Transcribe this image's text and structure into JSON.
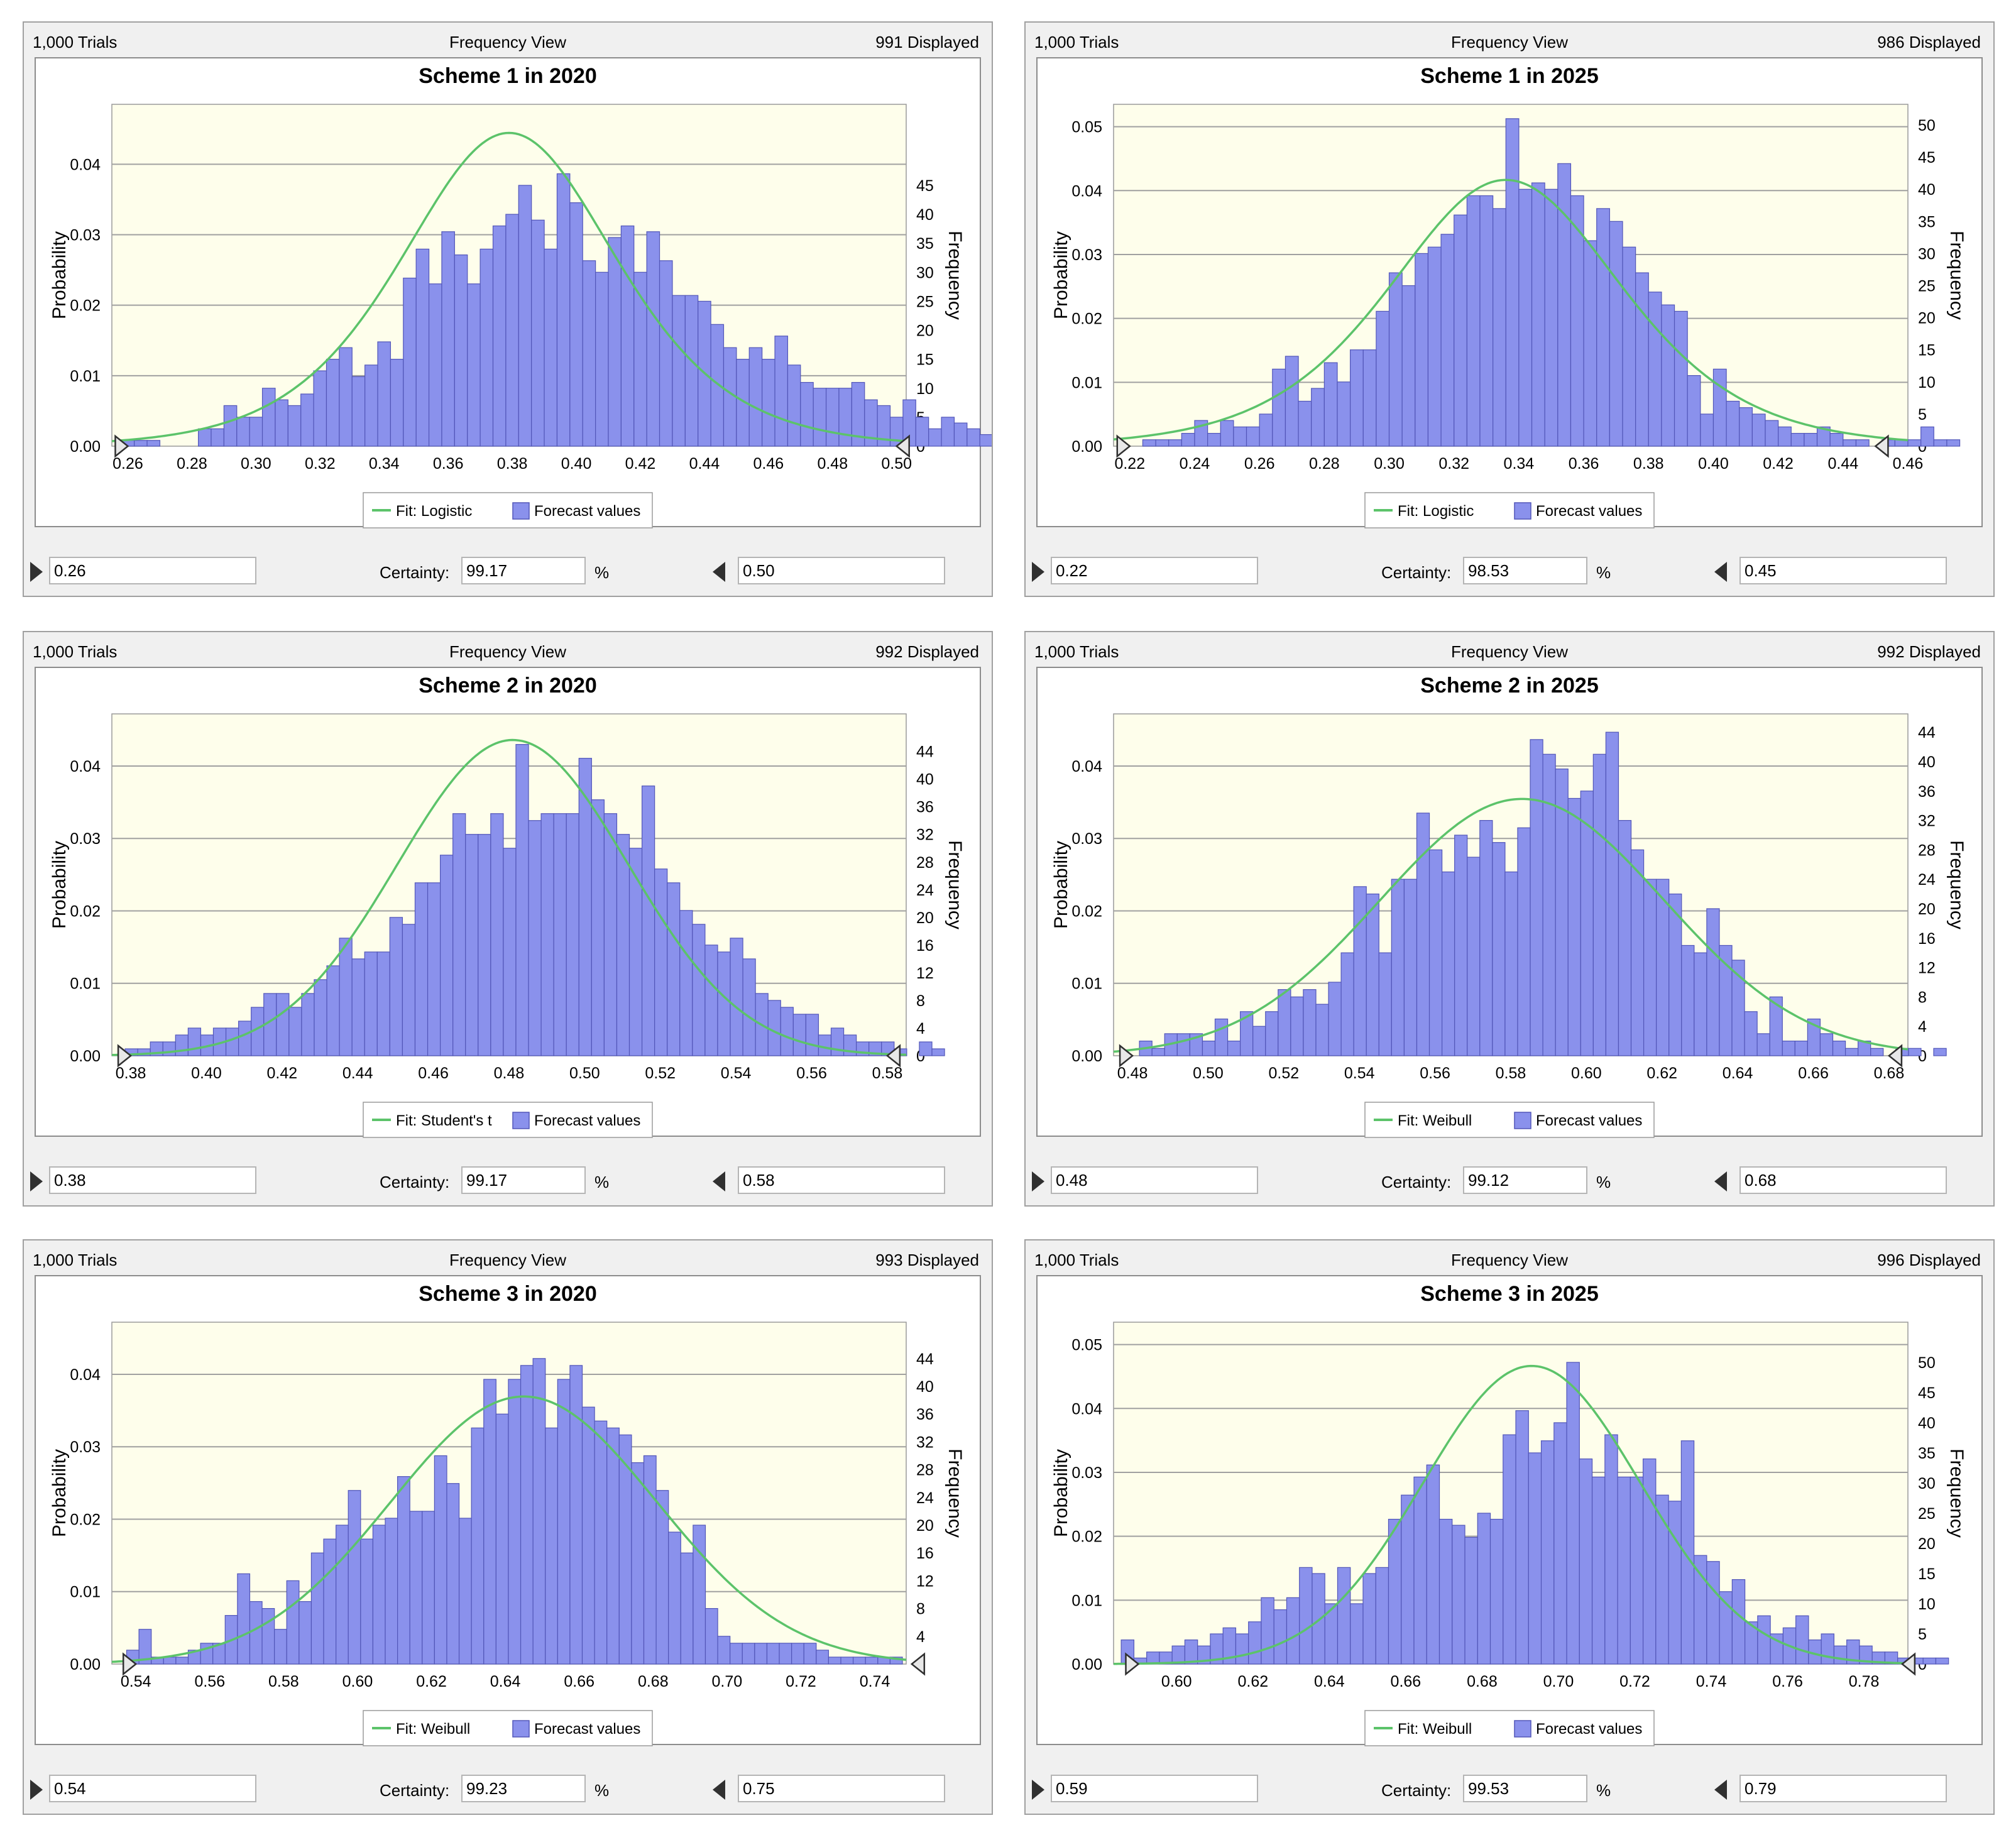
{
  "panels": [
    {
      "trials": "1,000 Trials",
      "view": "Frequency View",
      "displayed": "991 Displayed",
      "lower": "0.26",
      "certainty_label": "Certainty:",
      "certainty": "99.17",
      "pct": "%",
      "upper": "0.50",
      "chart_data": {
        "type": "bar",
        "title": "Scheme 1 in 2020",
        "ylabel": "Probability",
        "ylabel2": "Frequency",
        "x_ticks": [
          "0.26",
          "0.28",
          "0.30",
          "0.32",
          "0.34",
          "0.36",
          "0.38",
          "0.40",
          "0.42",
          "0.44",
          "0.46",
          "0.48",
          "0.50"
        ],
        "xlim": [
          0.255,
          0.503
        ],
        "y_ticks": [
          "0.00",
          "0.01",
          "0.02",
          "0.03",
          "0.04"
        ],
        "ylim": [
          0,
          0.0485
        ],
        "y2_ticks": [
          "0",
          "5",
          "10",
          "15",
          "20",
          "25",
          "30",
          "35",
          "40",
          "45"
        ],
        "bin_start": 0.258,
        "bin_width": 0.004,
        "frequencies": [
          1,
          1,
          1,
          0,
          0,
          0,
          3,
          3,
          7,
          5,
          5,
          10,
          8,
          7,
          9,
          13,
          15,
          17,
          12,
          14,
          18,
          15,
          29,
          34,
          28,
          37,
          33,
          28,
          34,
          38,
          40,
          45,
          39,
          34,
          47,
          42,
          32,
          30,
          36,
          38,
          30,
          37,
          32,
          26,
          26,
          25,
          21,
          17,
          15,
          17,
          15,
          19,
          14,
          11,
          10,
          10,
          10,
          11,
          8,
          7,
          5,
          8,
          5,
          3,
          5,
          4,
          3,
          2,
          3,
          5,
          2,
          2
        ],
        "legend": [
          "Fit: Logistic",
          "Forecast values"
        ],
        "fit": {
          "type": "logistic",
          "mean": 0.379,
          "scale": 0.0225
        }
      }
    },
    {
      "trials": "1,000 Trials",
      "view": "Frequency View",
      "displayed": "986 Displayed",
      "lower": "0.22",
      "certainty_label": "Certainty:",
      "certainty": "98.53",
      "pct": "%",
      "upper": "0.45",
      "chart_data": {
        "type": "bar",
        "title": "Scheme 1 in 2025",
        "ylabel": "Probability",
        "ylabel2": "Frequency",
        "x_ticks": [
          "0.22",
          "0.24",
          "0.26",
          "0.28",
          "0.30",
          "0.32",
          "0.34",
          "0.36",
          "0.38",
          "0.40",
          "0.42",
          "0.44",
          "0.46"
        ],
        "xlim": [
          0.215,
          0.46
        ],
        "y_ticks": [
          "0.00",
          "0.01",
          "0.02",
          "0.03",
          "0.04",
          "0.05"
        ],
        "ylim": [
          0,
          0.0535
        ],
        "y2_ticks": [
          "0",
          "5",
          "10",
          "15",
          "20",
          "25",
          "30",
          "35",
          "40",
          "45",
          "50"
        ],
        "bin_start": 0.22,
        "bin_width": 0.004,
        "frequencies": [
          0,
          1,
          1,
          1,
          2,
          4,
          2,
          4,
          3,
          3,
          5,
          12,
          14,
          7,
          9,
          13,
          10,
          15,
          15,
          21,
          27,
          25,
          30,
          31,
          33,
          36,
          39,
          39,
          37,
          51,
          40,
          41,
          40,
          44,
          39,
          32,
          37,
          35,
          31,
          27,
          24,
          22,
          21,
          11,
          5,
          12,
          7,
          6,
          5,
          4,
          3,
          2,
          2,
          3,
          2,
          1,
          1,
          0,
          1,
          1,
          1,
          3,
          1,
          1
        ],
        "legend": [
          "Fit: Logistic",
          "Forecast values"
        ],
        "fit": {
          "type": "logistic",
          "mean": 0.336,
          "scale": 0.024
        }
      }
    },
    {
      "trials": "1,000 Trials",
      "view": "Frequency View",
      "displayed": "992 Displayed",
      "lower": "0.38",
      "certainty_label": "Certainty:",
      "certainty": "99.17",
      "pct": "%",
      "upper": "0.58",
      "chart_data": {
        "type": "bar",
        "title": "Scheme 2 in 2020",
        "ylabel": "Probability",
        "ylabel2": "Frequency",
        "x_ticks": [
          "0.38",
          "0.40",
          "0.42",
          "0.44",
          "0.46",
          "0.48",
          "0.50",
          "0.52",
          "0.54",
          "0.56",
          "0.58"
        ],
        "xlim": [
          0.375,
          0.585
        ],
        "y_ticks": [
          "0.00",
          "0.01",
          "0.02",
          "0.03",
          "0.04"
        ],
        "ylim": [
          0,
          0.0472
        ],
        "y2_ticks": [
          "0",
          "4",
          "8",
          "12",
          "16",
          "20",
          "24",
          "28",
          "32",
          "36",
          "40",
          "44"
        ],
        "bin_start": 0.3785,
        "bin_width": 0.003333,
        "frequencies": [
          1,
          1,
          2,
          2,
          3,
          4,
          3,
          4,
          4,
          5,
          7,
          9,
          9,
          7,
          9,
          11,
          13,
          17,
          14,
          15,
          15,
          20,
          19,
          25,
          25,
          29,
          35,
          32,
          32,
          35,
          30,
          45,
          34,
          35,
          35,
          35,
          43,
          37,
          35,
          32,
          30,
          39,
          27,
          25,
          21,
          19,
          16,
          15,
          17,
          14,
          9,
          8,
          7,
          6,
          6,
          3,
          4,
          3,
          2,
          2,
          2,
          1,
          0,
          2,
          1
        ],
        "legend": [
          "Fit: Student's t",
          "Forecast values"
        ],
        "fit": {
          "type": "normal",
          "mean": 0.481,
          "sd": 0.0305
        }
      }
    },
    {
      "trials": "1,000 Trials",
      "view": "Frequency View",
      "displayed": "992 Displayed",
      "lower": "0.48",
      "certainty_label": "Certainty:",
      "certainty": "99.12",
      "pct": "%",
      "upper": "0.68",
      "chart_data": {
        "type": "bar",
        "title": "Scheme 2 in 2025",
        "ylabel": "Probability",
        "ylabel2": "Frequency",
        "x_ticks": [
          "0.48",
          "0.50",
          "0.52",
          "0.54",
          "0.56",
          "0.58",
          "0.60",
          "0.62",
          "0.64",
          "0.66",
          "0.68"
        ],
        "xlim": [
          0.475,
          0.685
        ],
        "y_ticks": [
          "0.00",
          "0.01",
          "0.02",
          "0.03",
          "0.04"
        ],
        "ylim": [
          0,
          0.0472
        ],
        "y2_ticks": [
          "0",
          "4",
          "8",
          "12",
          "16",
          "20",
          "24",
          "28",
          "32",
          "36",
          "40",
          "44"
        ],
        "bin_start": 0.4785,
        "bin_width": 0.003333,
        "frequencies": [
          0,
          2,
          1,
          3,
          3,
          3,
          2,
          5,
          2,
          6,
          4,
          6,
          9,
          8,
          9,
          7,
          10,
          14,
          23,
          22,
          14,
          24,
          24,
          33,
          28,
          25,
          30,
          27,
          32,
          29,
          25,
          31,
          43,
          41,
          39,
          35,
          36,
          41,
          44,
          32,
          28,
          24,
          24,
          22,
          15,
          14,
          20,
          15,
          13,
          6,
          3,
          8,
          2,
          2,
          5,
          3,
          2,
          1,
          2,
          1,
          0,
          1,
          1,
          0,
          1
        ],
        "legend": [
          "Fit: Weibull",
          "Forecast values"
        ],
        "fit": {
          "type": "normal",
          "mean": 0.583,
          "sd": 0.0375
        }
      }
    },
    {
      "trials": "1,000 Trials",
      "view": "Frequency View",
      "displayed": "993 Displayed",
      "lower": "0.54",
      "certainty_label": "Certainty:",
      "certainty": "99.23",
      "pct": "%",
      "upper": "0.75",
      "chart_data": {
        "type": "bar",
        "title": "Scheme 3 in 2020",
        "ylabel": "Probability",
        "ylabel2": "Frequency",
        "x_ticks": [
          "0.54",
          "0.56",
          "0.58",
          "0.60",
          "0.62",
          "0.64",
          "0.66",
          "0.68",
          "0.70",
          "0.72",
          "0.74"
        ],
        "xlim": [
          0.5335,
          0.7485
        ],
        "y_ticks": [
          "0.00",
          "0.01",
          "0.02",
          "0.03",
          "0.04"
        ],
        "ylim": [
          0,
          0.0472
        ],
        "y2_ticks": [
          "0",
          "4",
          "8",
          "12",
          "16",
          "20",
          "24",
          "28",
          "32",
          "36",
          "40",
          "44"
        ],
        "bin_start": 0.5375,
        "bin_width": 0.003333,
        "frequencies": [
          2,
          5,
          1,
          1,
          1,
          2,
          3,
          3,
          7,
          13,
          9,
          8,
          5,
          12,
          9,
          16,
          18,
          20,
          25,
          18,
          20,
          21,
          27,
          22,
          22,
          30,
          26,
          21,
          34,
          41,
          36,
          41,
          43,
          44,
          34,
          41,
          43,
          37,
          35,
          34,
          33,
          29,
          30,
          25,
          19,
          16,
          20,
          8,
          4,
          3,
          3,
          3,
          3,
          3,
          3,
          3,
          2,
          1,
          1,
          1,
          1,
          1,
          1
        ],
        "legend": [
          "Fit: Weibull",
          "Forecast values"
        ],
        "fit": {
          "type": "normal",
          "mean": 0.645,
          "sd": 0.036
        }
      }
    },
    {
      "trials": "1,000 Trials",
      "view": "Frequency View",
      "displayed": "996 Displayed",
      "lower": "0.59",
      "certainty_label": "Certainty:",
      "certainty": "99.53",
      "pct": "%",
      "upper": "0.79",
      "chart_data": {
        "type": "bar",
        "title": "Scheme 3 in 2025",
        "ylabel": "Probability",
        "ylabel2": "Frequency",
        "x_ticks": [
          "0.60",
          "0.62",
          "0.64",
          "0.66",
          "0.68",
          "0.70",
          "0.72",
          "0.74",
          "0.76",
          "0.78"
        ],
        "xlim": [
          0.5835,
          0.7915
        ],
        "y_ticks": [
          "0.00",
          "0.01",
          "0.02",
          "0.03",
          "0.04",
          "0.05"
        ],
        "ylim": [
          0,
          0.0535
        ],
        "y2_ticks": [
          "0",
          "5",
          "10",
          "15",
          "20",
          "25",
          "30",
          "35",
          "40",
          "45",
          "50"
        ],
        "bin_start": 0.5855,
        "bin_width": 0.003333,
        "frequencies": [
          4,
          1,
          2,
          2,
          3,
          4,
          3,
          5,
          6,
          5,
          7,
          11,
          9,
          11,
          16,
          15,
          10,
          16,
          10,
          15,
          16,
          24,
          28,
          31,
          33,
          24,
          23,
          21,
          25,
          24,
          38,
          42,
          35,
          37,
          40,
          50,
          34,
          31,
          38,
          31,
          31,
          34,
          28,
          27,
          37,
          18,
          17,
          12,
          14,
          7,
          8,
          5,
          6,
          8,
          4,
          5,
          3,
          4,
          3,
          2,
          2,
          1,
          1,
          1,
          1
        ],
        "legend": [
          "Fit: Weibull",
          "Forecast values"
        ],
        "fit": {
          "type": "normal",
          "mean": 0.693,
          "sd": 0.0285
        }
      }
    }
  ]
}
